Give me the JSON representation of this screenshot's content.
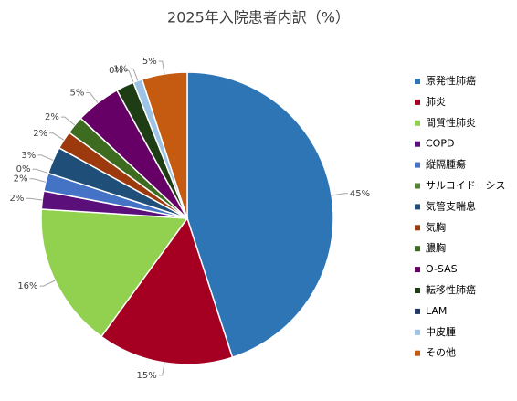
{
  "chart_data": {
    "type": "pie",
    "title": "2025年入院患者内訳（%）",
    "categories": [
      "原発性肺癌",
      "肺炎",
      "間質性肺炎",
      "COPD",
      "縦隔腫瘍",
      "サルコイドーシス",
      "気管支喘息",
      "気胸",
      "膿胸",
      "O-SAS",
      "転移性肺癌",
      "LAM",
      "中皮腫",
      "その他"
    ],
    "values": [
      45,
      15,
      16,
      2,
      2,
      0,
      3,
      2,
      2,
      5,
      2,
      0,
      1,
      5
    ],
    "value_labels": [
      "45%",
      "15%",
      "16%",
      "2%",
      "2%",
      "0%",
      "3%",
      "2%",
      "2%",
      "5%",
      null,
      "0%",
      "1%",
      "5%"
    ],
    "colors": [
      "#2e75b6",
      "#a50021",
      "#92d050",
      "#5b0f7a",
      "#4472c4",
      "#548235",
      "#1f4e79",
      "#9c3a0e",
      "#3d6b1f",
      "#660066",
      "#1e3d14",
      "#203864",
      "#9dc3e6",
      "#c55a11"
    ],
    "legend": "right"
  }
}
